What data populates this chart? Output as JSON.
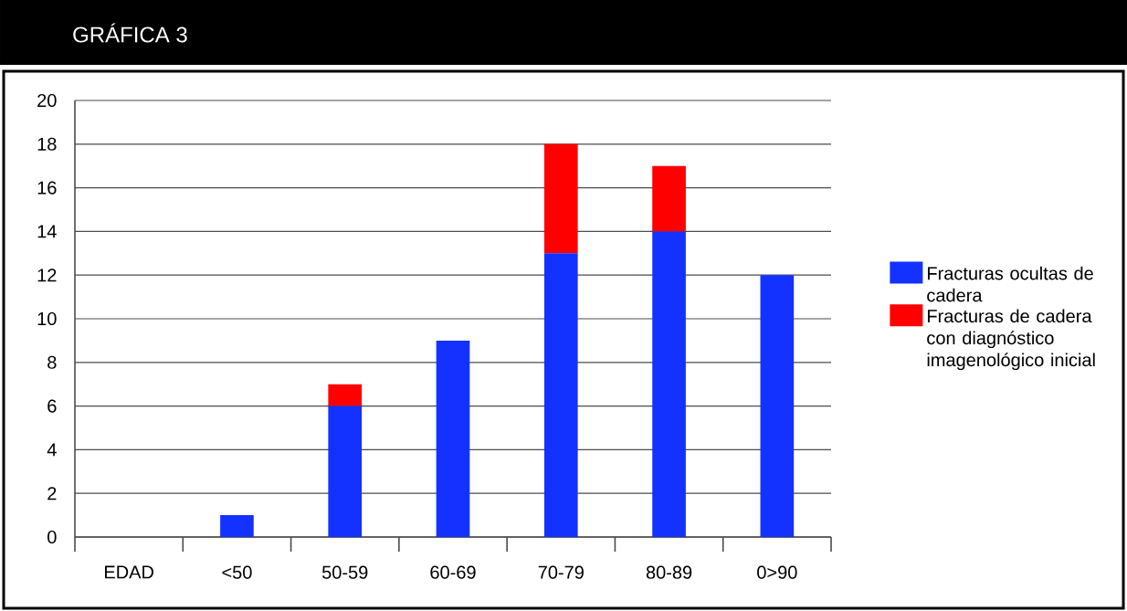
{
  "chart_data": {
    "type": "bar",
    "stacked": true,
    "title": "GRÁFICA 3",
    "categories": [
      "EDAD",
      "<50",
      "50-59",
      "60-69",
      "70-79",
      "80-89",
      "0>90"
    ],
    "series": [
      {
        "name": "Fracturas ocultas de cadera",
        "color": "#1432ff",
        "values": [
          null,
          1,
          6,
          9,
          13,
          14,
          12
        ]
      },
      {
        "name": "Fracturas de cadera con diagnóstico imagenológico inicial",
        "color": "#ff0000",
        "values": [
          null,
          null,
          1,
          null,
          5,
          3,
          null
        ]
      }
    ],
    "ylim": [
      0,
      20
    ],
    "yticks": [
      0,
      2,
      4,
      6,
      8,
      10,
      12,
      14,
      16,
      18,
      20
    ],
    "grid": "y",
    "legend": "right"
  }
}
